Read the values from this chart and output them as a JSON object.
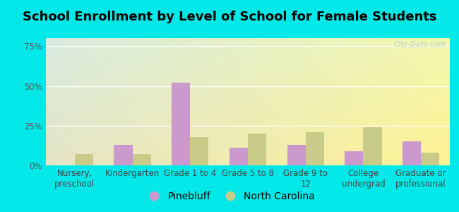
{
  "title": "School Enrollment by Level of School for Female Students",
  "categories": [
    "Nursery,\npreschool",
    "Kindergarten",
    "Grade 1 to 4",
    "Grade 5 to 8",
    "Grade 9 to\n12",
    "College\nundergrad",
    "Graduate or\nprofessional"
  ],
  "pinebluff": [
    0.0,
    13.0,
    52.0,
    11.0,
    13.0,
    9.0,
    15.0
  ],
  "north_carolina": [
    7.0,
    7.0,
    18.0,
    20.0,
    21.0,
    24.0,
    8.0
  ],
  "pinebluff_color": "#cc99cc",
  "nc_color": "#c8cc88",
  "background_outer": "#00e8e8",
  "ylim": [
    0,
    80
  ],
  "yticks": [
    0,
    25,
    50,
    75
  ],
  "ytick_labels": [
    "0%",
    "25%",
    "50%",
    "75%"
  ],
  "bar_width": 0.32,
  "title_fontsize": 13,
  "axis_fontsize": 8.5,
  "legend_fontsize": 10,
  "watermark": "City-Data.com"
}
